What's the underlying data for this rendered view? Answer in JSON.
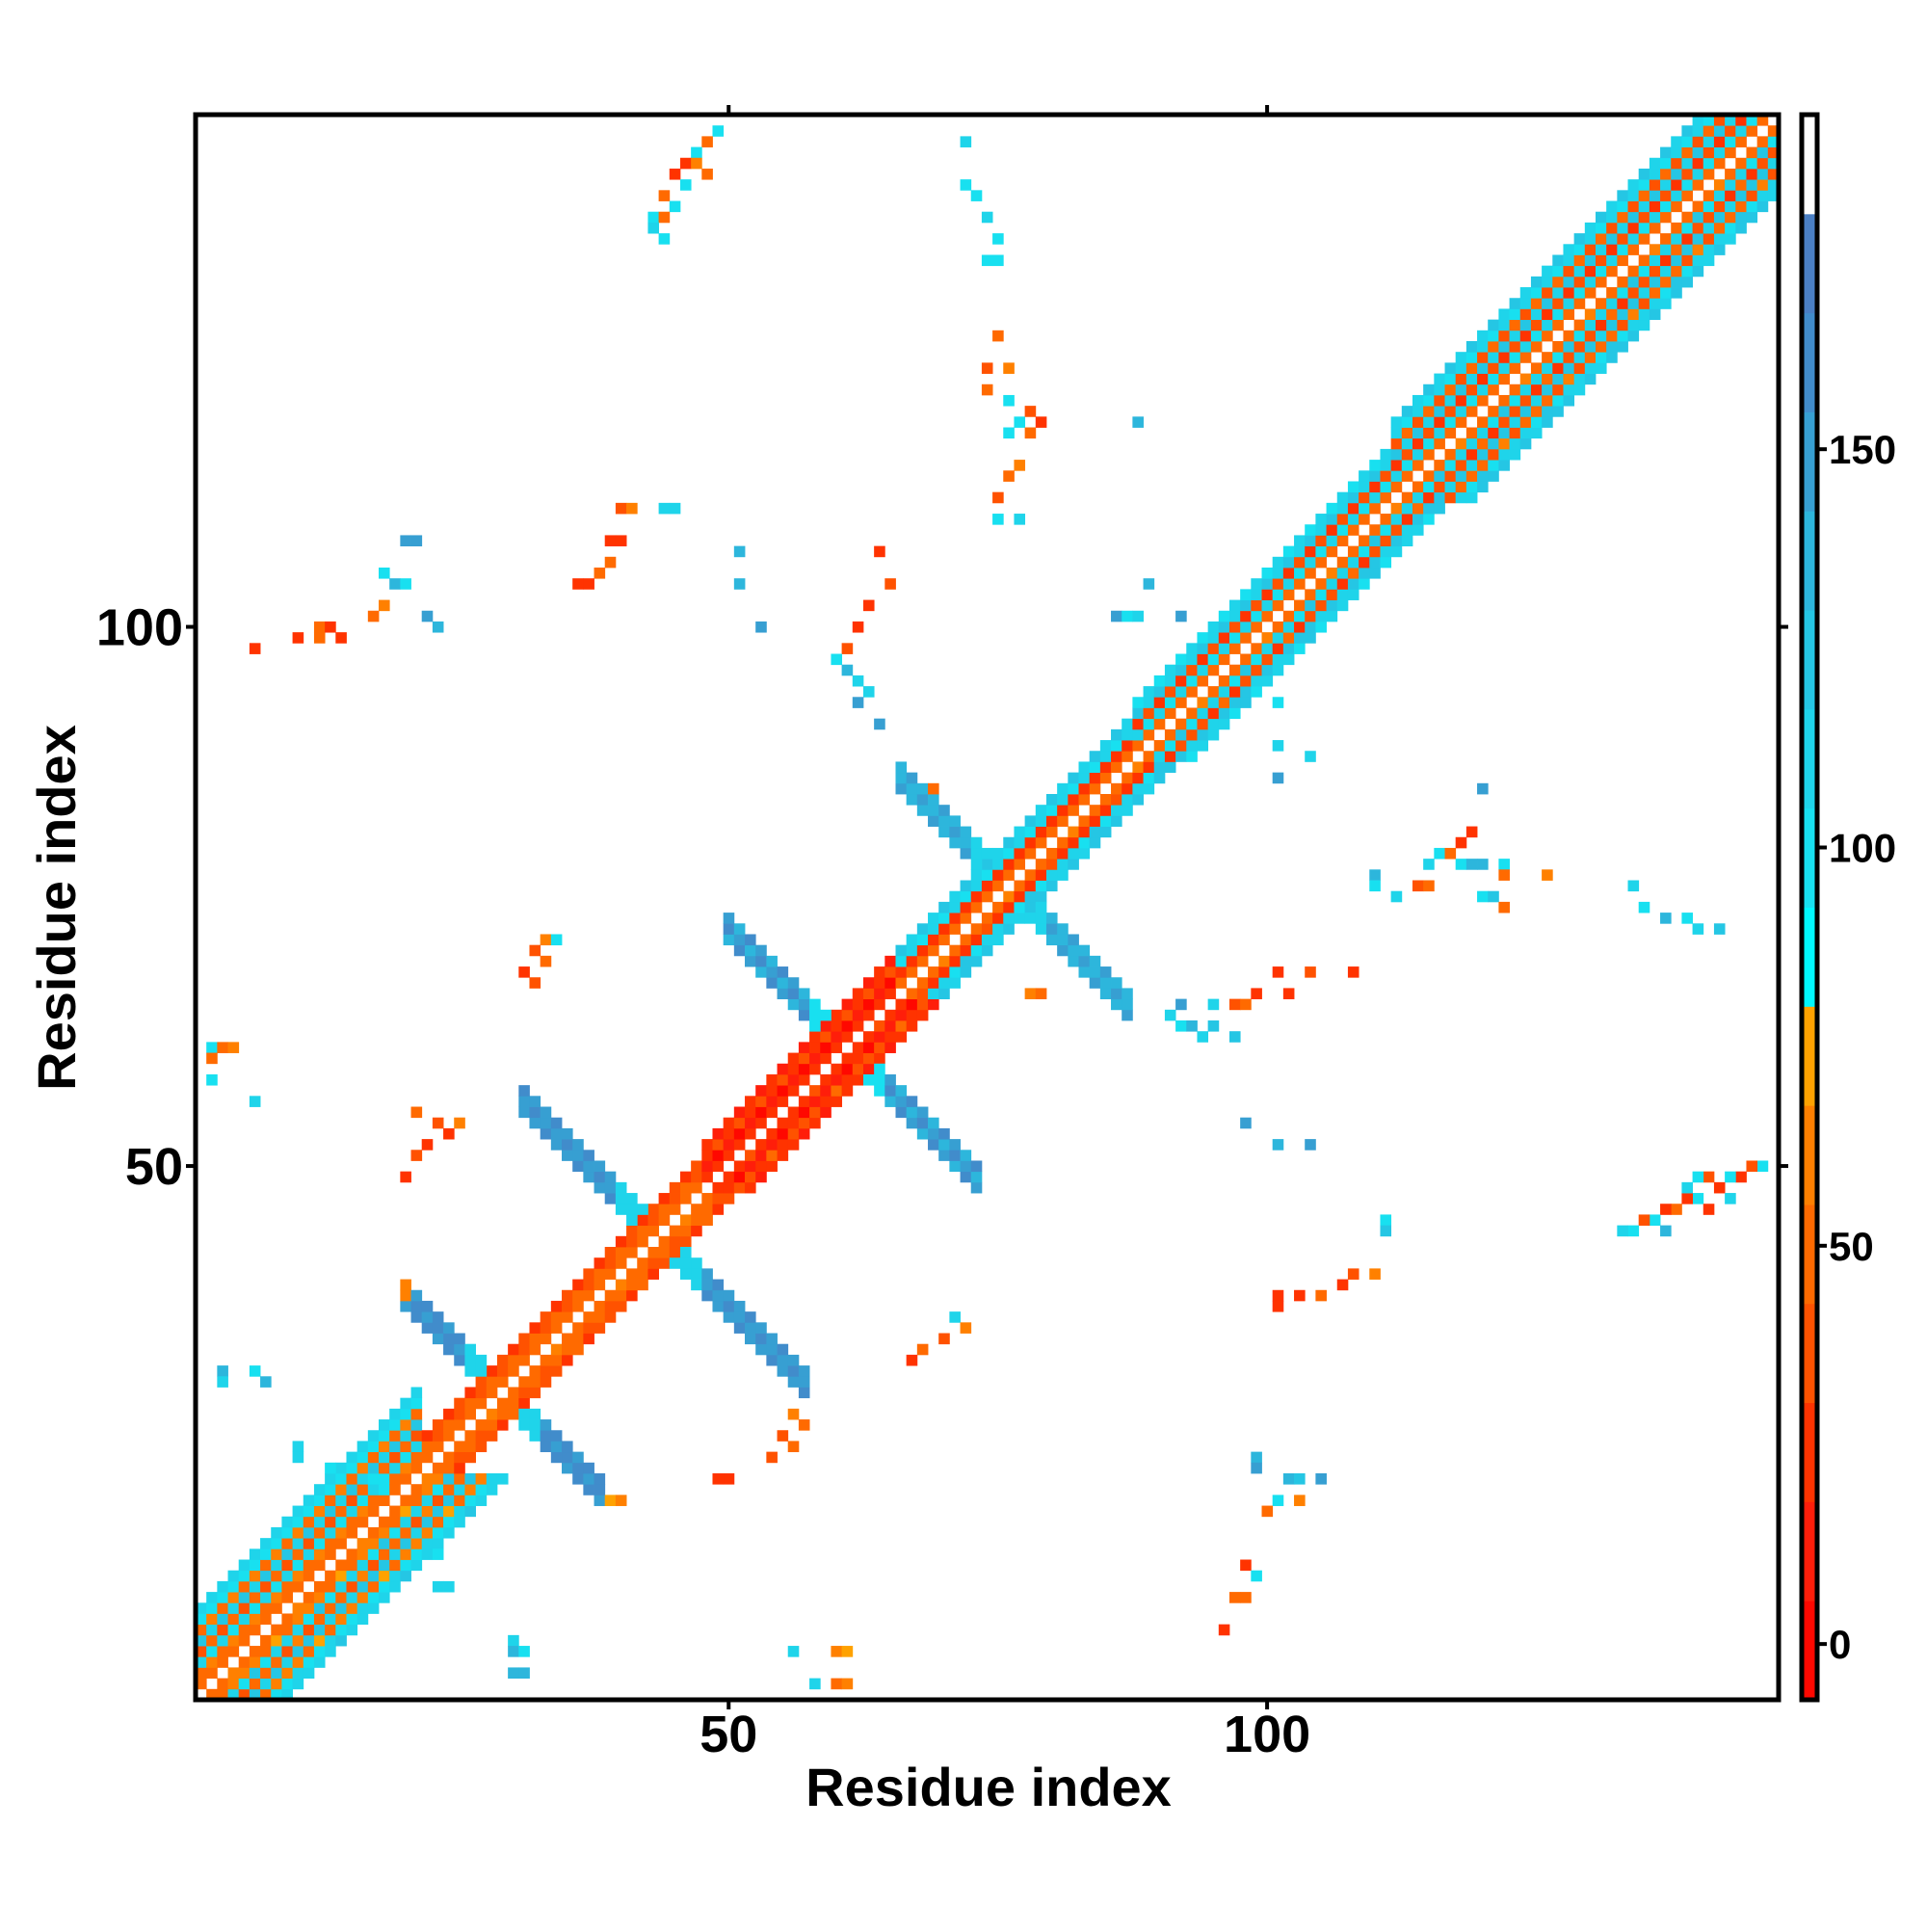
{
  "chart_data": {
    "type": "heatmap",
    "title": "",
    "xlabel": "Residue index",
    "ylabel": "Residue index",
    "n_residues": 147,
    "xlim": [
      0.5,
      147.5
    ],
    "ylim": [
      0.5,
      147.5
    ],
    "x_ticks": [
      {
        "value": 50,
        "label": "50"
      },
      {
        "value": 100,
        "label": "100"
      }
    ],
    "y_ticks": [
      {
        "value": 50,
        "label": "50"
      },
      {
        "value": 100,
        "label": "100"
      }
    ],
    "colorbar": {
      "range": [
        -7,
        192
      ],
      "ticks": [
        {
          "value": 0,
          "label": "0"
        },
        {
          "value": 50,
          "label": "50"
        },
        {
          "value": 100,
          "label": "100"
        },
        {
          "value": 150,
          "label": "150"
        }
      ],
      "colors": [
        "#ff0800",
        "#ff1e0a",
        "#ff3300",
        "#ff5200",
        "#ff6a00",
        "#ff8000",
        "#ffa200",
        "#00f8ff",
        "#18e0f0",
        "#1fd4ea",
        "#25c6e4",
        "#2db6dc",
        "#379fd2",
        "#418ccb",
        "#4a7fc4",
        "#ffffff"
      ]
    },
    "diagonal_segments": [
      {
        "from": 1,
        "to": 22,
        "halfwidth": 8,
        "pattern": [
          null,
          45,
          55,
          100,
          40,
          110,
          50,
          95,
          105
        ]
      },
      {
        "from": 22,
        "to": 48,
        "halfwidth": 3,
        "pattern": [
          null,
          45,
          35,
          25
        ]
      },
      {
        "from": 48,
        "to": 66,
        "halfwidth": 4,
        "pattern": [
          null,
          20,
          5,
          30,
          12
        ]
      },
      {
        "from": 66,
        "to": 88,
        "halfwidth": 4,
        "pattern": [
          null,
          45,
          20,
          100,
          110
        ]
      },
      {
        "from": 88,
        "to": 112,
        "halfwidth": 5,
        "pattern": [
          null,
          45,
          100,
          30,
          110,
          100
        ]
      },
      {
        "from": 112,
        "to": 148,
        "halfwidth": 7,
        "pattern": [
          null,
          45,
          100,
          30,
          110,
          40,
          100,
          110
        ]
      }
    ],
    "antiparallel_strands": [
      {
        "sum": 58,
        "from": 20,
        "to": 38,
        "thickness": 3,
        "value": 165,
        "core_value": 110
      },
      {
        "sum": 87,
        "from": 31,
        "to": 57,
        "thickness": 3,
        "value": 160,
        "core_value": 105
      },
      {
        "sum": 122,
        "from": 50,
        "to": 73,
        "thickness": 3,
        "value": 155,
        "core_value": 100
      },
      {
        "sum": 152,
        "from": 66,
        "to": 87,
        "thickness": 3,
        "value": 150,
        "core_value": 110
      }
    ],
    "contacts": [
      [
        49,
        146,
        100
      ],
      [
        48,
        145,
        45
      ],
      [
        47,
        144,
        100
      ],
      [
        46,
        143,
        30
      ],
      [
        47,
        143,
        60
      ],
      [
        45,
        142,
        20
      ],
      [
        46,
        141,
        100
      ],
      [
        48,
        142,
        45
      ],
      [
        44,
        140,
        45
      ],
      [
        45,
        139,
        100
      ],
      [
        43,
        138,
        100
      ],
      [
        44,
        138,
        50
      ],
      [
        43,
        137,
        110
      ],
      [
        44,
        136,
        100
      ],
      [
        72,
        145,
        110
      ],
      [
        72,
        141,
        100
      ],
      [
        73,
        140,
        100
      ],
      [
        74,
        138,
        110
      ],
      [
        75,
        136,
        100
      ],
      [
        74,
        134,
        100
      ],
      [
        75,
        134,
        95
      ],
      [
        75,
        127,
        50
      ],
      [
        74,
        124,
        40
      ],
      [
        76,
        124,
        60
      ],
      [
        74,
        122,
        45
      ],
      [
        76,
        121,
        100
      ],
      [
        77,
        119,
        95
      ],
      [
        78,
        120,
        40
      ],
      [
        79,
        119,
        30
      ],
      [
        76,
        118,
        100
      ],
      [
        78,
        118,
        50
      ],
      [
        77,
        115,
        60
      ],
      [
        76,
        114,
        45
      ],
      [
        75,
        112,
        40
      ],
      [
        75,
        110,
        100
      ],
      [
        77,
        110,
        110
      ],
      [
        88,
        119,
        140
      ],
      [
        40,
        111,
        40
      ],
      [
        41,
        111,
        60
      ],
      [
        44,
        111,
        110
      ],
      [
        45,
        111,
        110
      ],
      [
        39,
        108,
        30
      ],
      [
        40,
        108,
        20
      ],
      [
        36,
        104,
        20
      ],
      [
        37,
        104,
        30
      ],
      [
        38,
        105,
        45
      ],
      [
        39,
        106,
        50
      ],
      [
        20,
        108,
        150
      ],
      [
        21,
        108,
        150
      ],
      [
        18,
        105,
        100
      ],
      [
        19,
        104,
        140
      ],
      [
        20,
        104,
        100
      ],
      [
        18,
        102,
        60
      ],
      [
        17,
        101,
        45
      ],
      [
        22,
        101,
        150
      ],
      [
        23,
        100,
        130
      ],
      [
        10,
        99,
        20
      ],
      [
        12,
        99,
        50
      ],
      [
        12,
        100,
        45
      ],
      [
        13,
        100,
        30
      ],
      [
        14,
        99,
        25
      ],
      [
        6,
        98,
        20
      ],
      [
        51,
        107,
        140
      ],
      [
        51,
        104,
        140
      ],
      [
        53,
        100,
        150
      ],
      [
        64,
        107,
        20
      ],
      [
        65,
        104,
        40
      ],
      [
        63,
        102,
        25
      ],
      [
        62,
        100,
        30
      ],
      [
        61,
        98,
        40
      ],
      [
        60,
        97,
        100
      ],
      [
        61,
        96,
        140
      ],
      [
        62,
        95,
        110
      ],
      [
        63,
        94,
        110
      ],
      [
        62,
        93,
        150
      ],
      [
        64,
        91,
        150
      ],
      [
        86,
        101,
        150
      ],
      [
        87,
        101,
        100
      ],
      [
        88,
        101,
        110
      ],
      [
        92,
        101,
        150
      ],
      [
        89,
        104,
        140
      ],
      [
        101,
        93,
        100
      ],
      [
        101,
        89,
        110
      ],
      [
        104,
        88,
        110
      ],
      [
        101,
        86,
        150
      ],
      [
        120,
        85,
        150
      ],
      [
        115,
        78,
        110
      ],
      [
        116,
        79,
        100
      ],
      [
        118,
        80,
        20
      ],
      [
        119,
        81,
        30
      ],
      [
        117,
        79,
        45
      ],
      [
        118,
        78,
        100
      ],
      [
        119,
        78,
        140
      ],
      [
        120,
        78,
        130
      ],
      [
        122,
        78,
        100
      ],
      [
        122,
        77,
        45
      ],
      [
        126,
        77,
        60
      ],
      [
        110,
        77,
        140
      ],
      [
        110,
        76,
        100
      ],
      [
        112,
        75,
        110
      ],
      [
        114,
        76,
        40
      ],
      [
        115,
        76,
        50
      ],
      [
        120,
        75,
        100
      ],
      [
        121,
        75,
        120
      ],
      [
        122,
        74,
        45
      ],
      [
        134,
        76,
        110
      ],
      [
        135,
        74,
        100
      ],
      [
        137,
        73,
        130
      ],
      [
        139,
        73,
        100
      ],
      [
        140,
        72,
        110
      ],
      [
        142,
        72,
        120
      ],
      [
        101,
        68,
        20
      ],
      [
        104,
        68,
        40
      ],
      [
        108,
        68,
        20
      ],
      [
        102,
        66,
        30
      ],
      [
        97,
        65,
        40
      ],
      [
        98,
        65,
        45
      ],
      [
        99,
        66,
        30
      ],
      [
        95,
        65,
        110
      ],
      [
        92,
        65,
        150
      ],
      [
        91,
        64,
        110
      ],
      [
        92,
        63,
        100
      ],
      [
        93,
        63,
        130
      ],
      [
        94,
        62,
        110
      ],
      [
        95,
        63,
        120
      ],
      [
        97,
        62,
        120
      ],
      [
        98,
        54,
        150
      ],
      [
        101,
        52,
        140
      ],
      [
        104,
        52,
        150
      ],
      [
        146,
        50,
        100
      ],
      [
        145,
        50,
        40
      ],
      [
        144,
        49,
        30
      ],
      [
        143,
        49,
        100
      ],
      [
        142,
        48,
        20
      ],
      [
        141,
        49,
        40
      ],
      [
        140,
        47,
        100
      ],
      [
        139,
        47,
        30
      ],
      [
        138,
        46,
        45
      ],
      [
        137,
        46,
        20
      ],
      [
        136,
        45,
        100
      ],
      [
        135,
        45,
        40
      ],
      [
        134,
        44,
        100
      ],
      [
        133,
        44,
        110
      ],
      [
        141,
        46,
        20
      ],
      [
        143,
        47,
        110
      ],
      [
        139,
        48,
        110
      ],
      [
        140,
        49,
        100
      ],
      [
        137,
        44,
        140
      ],
      [
        111,
        45,
        100
      ],
      [
        111,
        44,
        120
      ],
      [
        108,
        40,
        40
      ],
      [
        110,
        40,
        60
      ],
      [
        107,
        39,
        30
      ],
      [
        105,
        38,
        45
      ],
      [
        103,
        38,
        20
      ],
      [
        101,
        38,
        30
      ],
      [
        101,
        37,
        20
      ],
      [
        99,
        23,
        140
      ],
      [
        99,
        22,
        150
      ],
      [
        102,
        21,
        140
      ],
      [
        103,
        21,
        120
      ],
      [
        105,
        21,
        150
      ],
      [
        101,
        19,
        100
      ],
      [
        100,
        18,
        50
      ],
      [
        103,
        19,
        60
      ],
      [
        98,
        13,
        20
      ],
      [
        99,
        12,
        100
      ],
      [
        97,
        10,
        45
      ],
      [
        98,
        10,
        45
      ],
      [
        96,
        7,
        20
      ],
      [
        2,
        61,
        100
      ],
      [
        2,
        60,
        45
      ],
      [
        3,
        61,
        50
      ],
      [
        4,
        61,
        60
      ],
      [
        2,
        58,
        100
      ],
      [
        6,
        56,
        110
      ],
      [
        21,
        55,
        45
      ],
      [
        23,
        54,
        40
      ],
      [
        24,
        53,
        20
      ],
      [
        25,
        54,
        60
      ],
      [
        22,
        52,
        30
      ],
      [
        20,
        49,
        20
      ],
      [
        21,
        51,
        40
      ],
      [
        33,
        71,
        60
      ],
      [
        34,
        71,
        100
      ],
      [
        32,
        70,
        40
      ],
      [
        31,
        68,
        30
      ],
      [
        32,
        67,
        40
      ],
      [
        33,
        69,
        45
      ],
      [
        3,
        31,
        140
      ],
      [
        3,
        30,
        110
      ],
      [
        6,
        31,
        100
      ],
      [
        7,
        30,
        140
      ],
      [
        10,
        24,
        110
      ],
      [
        10,
        23,
        110
      ],
      [
        13,
        22,
        100
      ],
      [
        14,
        22,
        110
      ],
      [
        13,
        21,
        110
      ],
      [
        17,
        21,
        100
      ],
      [
        18,
        20,
        100
      ],
      [
        22,
        14,
        110
      ],
      [
        23,
        14,
        100
      ],
      [
        23,
        11,
        110
      ],
      [
        24,
        11,
        110
      ],
      [
        30,
        6,
        110
      ],
      [
        30,
        5,
        140
      ],
      [
        31,
        5,
        100
      ],
      [
        30,
        3,
        140
      ],
      [
        31,
        3,
        130
      ],
      [
        56,
        27,
        60
      ],
      [
        57,
        26,
        45
      ],
      [
        55,
        25,
        40
      ],
      [
        56,
        24,
        50
      ],
      [
        54,
        23,
        40
      ],
      [
        50,
        21,
        30
      ],
      [
        49,
        21,
        25
      ],
      [
        56,
        5,
        110
      ],
      [
        60,
        5,
        60
      ],
      [
        61,
        5,
        70
      ],
      [
        58,
        2,
        110
      ],
      [
        60,
        2,
        45
      ],
      [
        61,
        2,
        60
      ],
      [
        71,
        36,
        110
      ],
      [
        72,
        35,
        60
      ],
      [
        70,
        34,
        40
      ],
      [
        68,
        33,
        45
      ],
      [
        67,
        32,
        30
      ],
      [
        20,
        39,
        60
      ],
      [
        20,
        38,
        60
      ],
      [
        39,
        19,
        70
      ],
      [
        40,
        19,
        60
      ],
      [
        78,
        66,
        60
      ],
      [
        79,
        66,
        45
      ],
      [
        69,
        85,
        45
      ]
    ]
  }
}
